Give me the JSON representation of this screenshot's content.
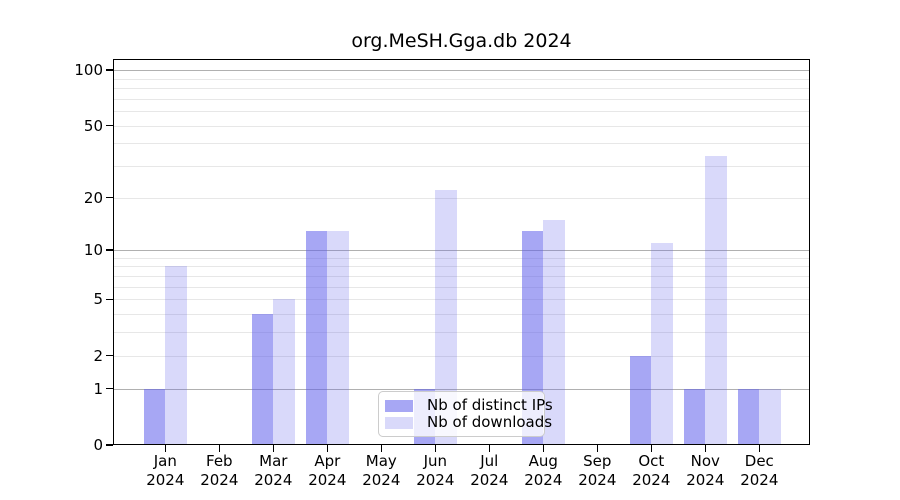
{
  "chart_data": {
    "type": "bar",
    "title": "org.MeSH.Gga.db 2024",
    "categories": [
      "Jan",
      "Feb",
      "Mar",
      "Apr",
      "May",
      "Jun",
      "Jul",
      "Aug",
      "Sep",
      "Oct",
      "Nov",
      "Dec"
    ],
    "category_sublabel": "2024",
    "series": [
      {
        "name": "Nb of distinct IPs",
        "color": "rgba(95,95,235,0.55)",
        "values": [
          1,
          0,
          4,
          13,
          0,
          1,
          0,
          13,
          0,
          2,
          1,
          1
        ]
      },
      {
        "name": "Nb of downloads",
        "color": "rgba(95,95,235,0.24)",
        "values": [
          8,
          0,
          5,
          13,
          0,
          22,
          0,
          15,
          0,
          11,
          34,
          1
        ]
      }
    ],
    "y_scale": "log10(1+x)",
    "y_tick_labels": [
      "100",
      "50",
      "20",
      "10",
      "5",
      "2",
      "1",
      "0"
    ],
    "y_tick_values": [
      100,
      50,
      20,
      10,
      5,
      2,
      1,
      0
    ],
    "major_grid_values": [
      1,
      10,
      100
    ],
    "minor_grid_values": [
      2,
      3,
      4,
      5,
      6,
      7,
      8,
      9,
      20,
      30,
      40,
      50,
      60,
      70,
      80,
      90
    ],
    "ylim": [
      0,
      114
    ],
    "grid": "horizontal",
    "legend_position": "lower center"
  },
  "colors": {
    "ips_bar": "rgba(95,95,235,0.55)",
    "downloads_bar": "rgba(95,95,235,0.24)",
    "major_grid": "#b0b0b0",
    "minor_grid": "#e7e7e7",
    "axis": "#000000",
    "legend_border": "#cccccc",
    "legend_background": "rgba(255,255,255,0.8)"
  }
}
